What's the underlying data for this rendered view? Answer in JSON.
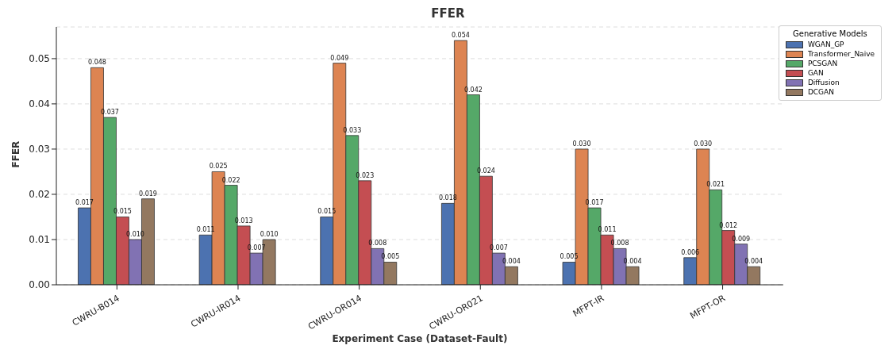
{
  "chart_data": {
    "type": "bar",
    "title": "FFER",
    "xlabel": "Experiment Case (Dataset-Fault)",
    "ylabel": "FFER",
    "legend_title": "Generative Models",
    "categories": [
      "CWRU-B014",
      "CWRU-IR014",
      "CWRU-OR014",
      "CWRU-OR021",
      "MFPT-IR",
      "MFPT-OR"
    ],
    "series": [
      {
        "name": "WGAN_GP",
        "color": "#4c72b0",
        "values": [
          0.017,
          0.011,
          0.015,
          0.018,
          0.005,
          0.006
        ],
        "value_labels": [
          "0.017",
          "0.011",
          "0.015",
          "0.018",
          "0.005",
          "0.006"
        ]
      },
      {
        "name": "Transformer_Naive",
        "color": "#dd8452",
        "values": [
          0.048,
          0.025,
          0.049,
          0.054,
          0.03,
          0.03
        ],
        "value_labels": [
          "0.048",
          "0.025",
          "0.049",
          "0.054",
          "0.030",
          "0.030"
        ]
      },
      {
        "name": "PCSGAN",
        "color": "#55a868",
        "values": [
          0.037,
          0.022,
          0.033,
          0.042,
          0.017,
          0.021
        ],
        "value_labels": [
          "0.037",
          "0.022",
          "0.033",
          "0.042",
          "0.017",
          "0.021"
        ]
      },
      {
        "name": "GAN",
        "color": "#c44e52",
        "values": [
          0.015,
          0.013,
          0.023,
          0.024,
          0.011,
          0.012
        ],
        "value_labels": [
          "0.015",
          "0.013",
          "0.023",
          "0.024",
          "0.011",
          "0.012"
        ]
      },
      {
        "name": "Diffusion",
        "color": "#8172b3",
        "values": [
          0.01,
          0.007,
          0.008,
          0.007,
          0.008,
          0.009
        ],
        "value_labels": [
          "0.010",
          "0.007",
          "0.008",
          "0.007",
          "0.008",
          "0.009"
        ]
      },
      {
        "name": "DCGAN",
        "color": "#937860",
        "values": [
          0.019,
          0.01,
          0.005,
          0.004,
          0.004,
          0.004
        ],
        "value_labels": [
          "0.019",
          "0.010",
          "0.005",
          "0.004",
          "0.004",
          "0.004"
        ]
      }
    ],
    "ylim": [
      0,
      0.057
    ],
    "yticks": [
      {
        "value": 0,
        "label": "0.00"
      },
      {
        "value": 0.01,
        "label": "0.01"
      },
      {
        "value": 0.02,
        "label": "0.02"
      },
      {
        "value": 0.03,
        "label": "0.03"
      },
      {
        "value": 0.04,
        "label": "0.04"
      },
      {
        "value": 0.05,
        "label": "0.05"
      }
    ],
    "grid": "y",
    "legend": "top right"
  }
}
